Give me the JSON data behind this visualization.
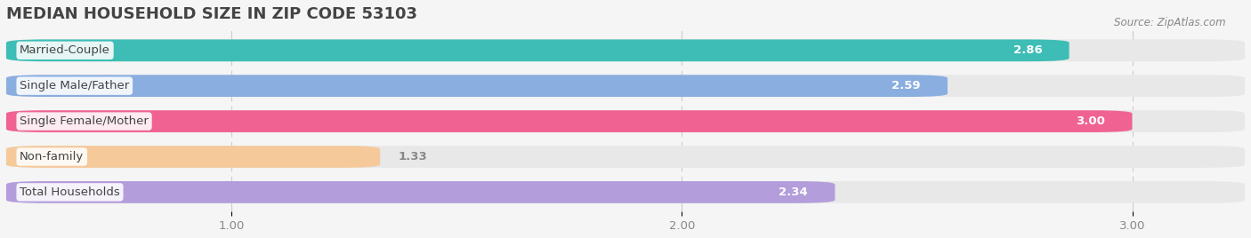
{
  "title": "MEDIAN HOUSEHOLD SIZE IN ZIP CODE 53103",
  "source": "Source: ZipAtlas.com",
  "categories": [
    "Married-Couple",
    "Single Male/Father",
    "Single Female/Mother",
    "Non-family",
    "Total Households"
  ],
  "values": [
    2.86,
    2.59,
    3.0,
    1.33,
    2.34
  ],
  "bar_colors": [
    "#3dbdb5",
    "#8aaee0",
    "#f06292",
    "#f5c99a",
    "#b39ddb"
  ],
  "label_colors": [
    "#ffffff",
    "#ffffff",
    "#ffffff",
    "#888888",
    "#ffffff"
  ],
  "xlim": [
    0.5,
    3.25
  ],
  "xticks": [
    1.0,
    2.0,
    3.0
  ],
  "background_color": "#f5f5f5",
  "bar_bg_color": "#e8e8e8",
  "title_fontsize": 13,
  "bar_height": 0.62,
  "label_fontsize": 9.5
}
